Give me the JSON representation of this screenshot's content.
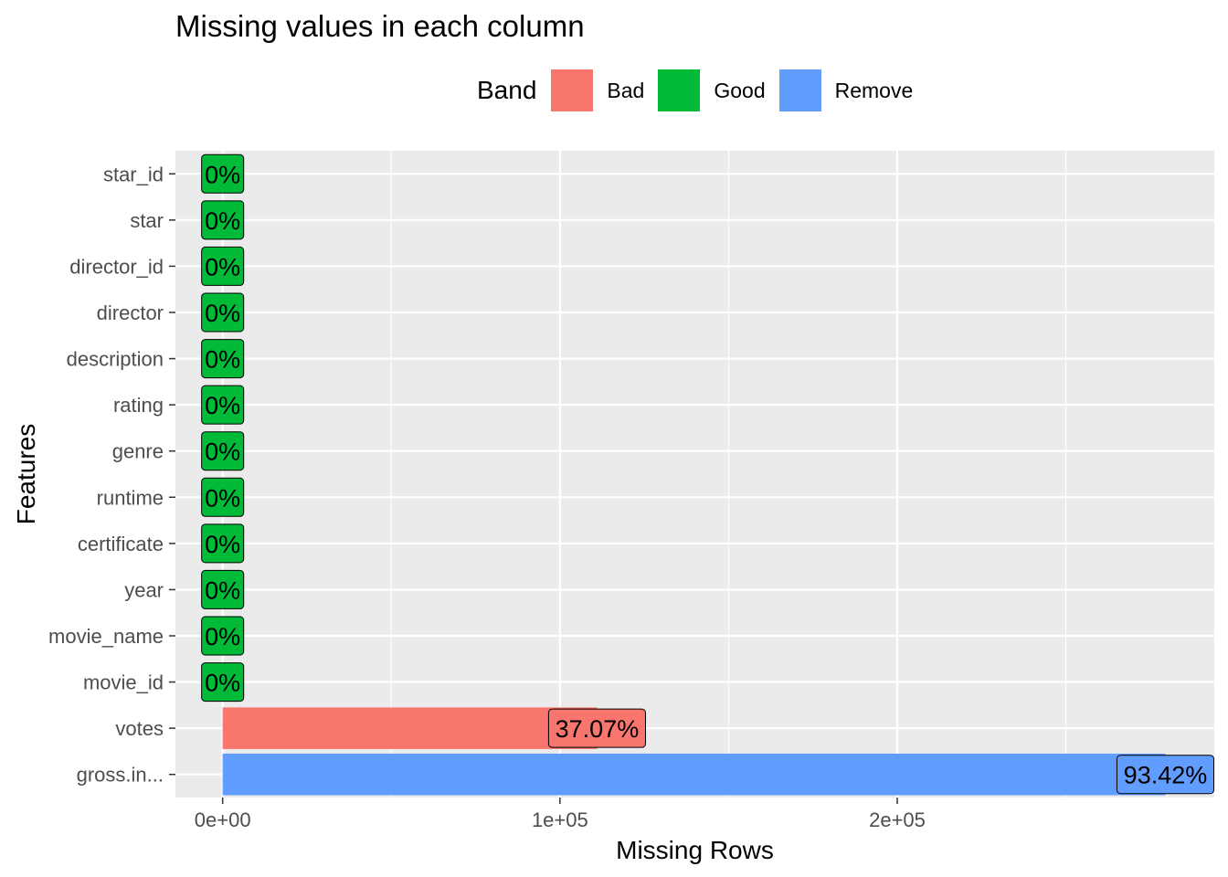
{
  "chart_data": {
    "type": "bar",
    "orientation": "horizontal",
    "title": "Missing values in each column",
    "xlabel": "Missing Rows",
    "ylabel": "Features",
    "xlim": [
      -14000,
      294000
    ],
    "xticks": [
      0,
      100000,
      200000
    ],
    "xtick_labels": [
      "0e+00",
      "1e+05",
      "2e+05"
    ],
    "grid": true,
    "legend": {
      "title": "Band",
      "position": "top",
      "entries": [
        {
          "label": "Bad",
          "color": "#F8766D"
        },
        {
          "label": "Good",
          "color": "#00BA38"
        },
        {
          "label": "Remove",
          "color": "#619CFF"
        }
      ]
    },
    "bars": [
      {
        "feature": "star_id",
        "value": 0,
        "label": "0%",
        "band": "Good"
      },
      {
        "feature": "star",
        "value": 0,
        "label": "0%",
        "band": "Good"
      },
      {
        "feature": "director_id",
        "value": 0,
        "label": "0%",
        "band": "Good"
      },
      {
        "feature": "director",
        "value": 0,
        "label": "0%",
        "band": "Good"
      },
      {
        "feature": "description",
        "value": 0,
        "label": "0%",
        "band": "Good"
      },
      {
        "feature": "rating",
        "value": 0,
        "label": "0%",
        "band": "Good"
      },
      {
        "feature": "genre",
        "value": 0,
        "label": "0%",
        "band": "Good"
      },
      {
        "feature": "runtime",
        "value": 0,
        "label": "0%",
        "band": "Good"
      },
      {
        "feature": "certificate",
        "value": 0,
        "label": "0%",
        "band": "Good"
      },
      {
        "feature": "year",
        "value": 0,
        "label": "0%",
        "band": "Good"
      },
      {
        "feature": "movie_name",
        "value": 0,
        "label": "0%",
        "band": "Good"
      },
      {
        "feature": "movie_id",
        "value": 0,
        "label": "0%",
        "band": "Good"
      },
      {
        "feature": "votes",
        "value": 111000,
        "label": "37.07%",
        "band": "Bad"
      },
      {
        "feature": "gross.in...",
        "value": 279500,
        "label": "93.42%",
        "band": "Remove"
      }
    ]
  }
}
